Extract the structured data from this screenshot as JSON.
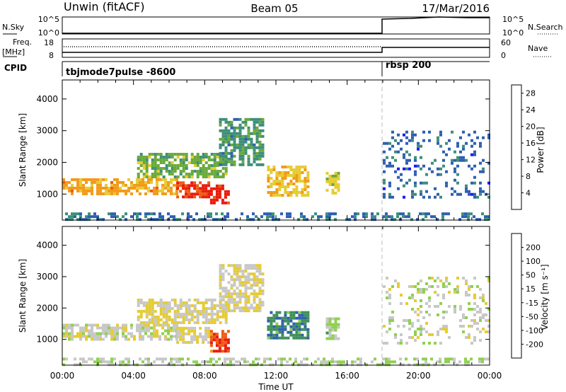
{
  "header": {
    "station": "Unwin (fitACF)",
    "beam": "Beam 05",
    "date": "17/Mar/2016"
  },
  "params": {
    "nsky_label": "N.Sky",
    "nsky_ticks": [
      "10^5",
      "10^0"
    ],
    "nsearch_label": "N.Search",
    "nsearch_ticks": [
      "10^5",
      "10^0"
    ],
    "freq_label_1": "Freq.",
    "freq_label_2": "[MHz]",
    "freq_ticks": [
      "18",
      "8"
    ],
    "nave_label": "Nave",
    "nave_ticks": [
      "60",
      "0"
    ],
    "cpid_label": "CPID",
    "cpid_segments": [
      {
        "name": "tbjmode7pulse -8600",
        "start_hour": 0
      },
      {
        "name": "rbsp 200",
        "start_hour": 18
      }
    ]
  },
  "chart_data": [
    {
      "type": "heatmap",
      "title": "",
      "xlabel": "Time UT",
      "ylabel": "Slant Range [km]",
      "xlim": [
        0,
        24
      ],
      "ylim": [
        180,
        4600
      ],
      "x_ticks": [
        "00:00",
        "04:00",
        "08:00",
        "12:00",
        "16:00",
        "20:00",
        "00:00"
      ],
      "y_ticks": [
        1000,
        2000,
        3000,
        4000
      ],
      "colorbar": {
        "label": "Power [dB]",
        "ticks": [
          4,
          8,
          12,
          16,
          20,
          24,
          28
        ],
        "range": [
          0,
          30
        ],
        "colors": [
          "#1a1aff",
          "#2f5fb0",
          "#3e8f7a",
          "#6aaa3a",
          "#e6cc33",
          "#f29a1a",
          "#ee5a10",
          "#e81a0a"
        ]
      },
      "regions": [
        {
          "x0": 0.0,
          "x1": 6.4,
          "y0": 1000,
          "y1": 1500,
          "v": 20
        },
        {
          "x0": 6.4,
          "x1": 8.3,
          "y0": 900,
          "y1": 1400,
          "v": 26
        },
        {
          "x0": 8.3,
          "x1": 9.4,
          "y0": 700,
          "y1": 1300,
          "v": 28
        },
        {
          "x0": 4.2,
          "x1": 9.2,
          "y0": 1500,
          "y1": 2300,
          "v": 13
        },
        {
          "x0": 8.8,
          "x1": 11.2,
          "y0": 1900,
          "y1": 3400,
          "v": 10
        },
        {
          "x0": 11.5,
          "x1": 13.8,
          "y0": 1000,
          "y1": 1900,
          "v": 18
        },
        {
          "x0": 14.8,
          "x1": 15.5,
          "y0": 1000,
          "y1": 1700,
          "v": 16
        },
        {
          "x0": 18.0,
          "x1": 24.0,
          "y0": 900,
          "y1": 3000,
          "v": 6
        },
        {
          "x0": 0.0,
          "x1": 24.0,
          "y0": 180,
          "y1": 420,
          "v": 7
        }
      ]
    },
    {
      "type": "heatmap",
      "title": "",
      "xlabel": "Time UT",
      "ylabel": "Slant Range [km]",
      "xlim": [
        0,
        24
      ],
      "ylim": [
        180,
        4600
      ],
      "x_ticks": [
        "00:00",
        "04:00",
        "08:00",
        "12:00",
        "16:00",
        "20:00",
        "00:00"
      ],
      "y_ticks": [
        1000,
        2000,
        3000,
        4000
      ],
      "colorbar": {
        "label": "Velocity [m s⁻¹]",
        "ticks": [
          "200",
          "100",
          "50",
          "15",
          "-15",
          "-50",
          "-100",
          "-200"
        ],
        "range": [
          -250,
          250
        ],
        "colors": [
          "#e81a0a",
          "#ee5a10",
          "#f29a1a",
          "#e6cc33",
          "#c8c8c8",
          "#8fd14f",
          "#3e8f5a",
          "#2f5fb0",
          "#1a1aff"
        ]
      },
      "regions": [
        {
          "x0": 0.0,
          "x1": 6.4,
          "y0": 1000,
          "y1": 1500,
          "v": 0
        },
        {
          "x0": 6.4,
          "x1": 8.3,
          "y0": 900,
          "y1": 1400,
          "v": -40
        },
        {
          "x0": 8.3,
          "x1": 9.4,
          "y0": 600,
          "y1": 1300,
          "v": -180
        },
        {
          "x0": 4.2,
          "x1": 9.2,
          "y0": 1500,
          "y1": 2300,
          "v": -30
        },
        {
          "x0": 8.8,
          "x1": 11.2,
          "y0": 1900,
          "y1": 3400,
          "v": -20
        },
        {
          "x0": 11.5,
          "x1": 13.8,
          "y0": 1000,
          "y1": 1900,
          "v": 120
        },
        {
          "x0": 14.8,
          "x1": 15.5,
          "y0": 1000,
          "y1": 1700,
          "v": 40
        },
        {
          "x0": 18.0,
          "x1": 24.0,
          "y0": 900,
          "y1": 3000,
          "v": 0
        },
        {
          "x0": 0.0,
          "x1": 24.0,
          "y0": 180,
          "y1": 420,
          "v": 30
        }
      ]
    }
  ]
}
